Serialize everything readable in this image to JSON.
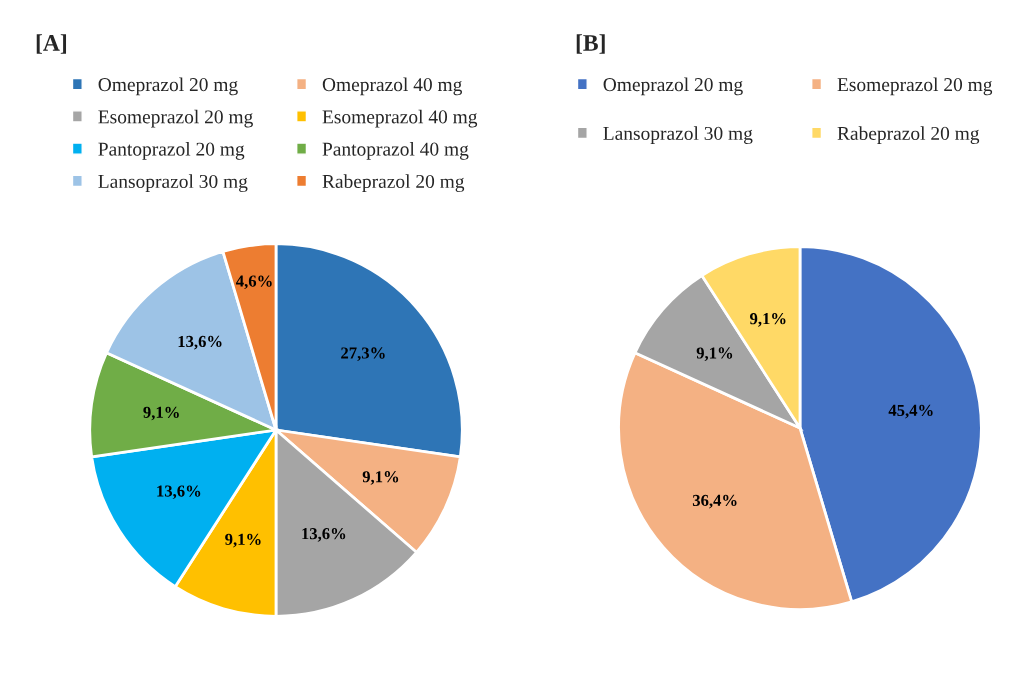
{
  "chart_data": [
    {
      "type": "pie",
      "title": "[A]",
      "legend": "top",
      "categories": [
        "Omeprazol 20 mg",
        "Omeprazol 40 mg",
        "Esomeprazol 20 mg",
        "Esomeprazol 40 mg",
        "Pantoprazol 20 mg",
        "Pantoprazol 40 mg",
        "Lansoprazol 30 mg",
        "Rabeprazol 20 mg"
      ],
      "values": [
        27.3,
        9.1,
        13.6,
        9.1,
        13.6,
        9.1,
        13.6,
        4.6
      ],
      "value_labels": [
        "27,3%",
        "9,1%",
        "13,6%",
        "9,1%",
        "13,6%",
        "9,1%",
        "13,6%",
        "4,6%"
      ],
      "colors": [
        "#2e75b6",
        "#f4b183",
        "#a5a5a5",
        "#ffc000",
        "#00b0f0",
        "#70ad47",
        "#9dc3e6",
        "#ed7d31"
      ]
    },
    {
      "type": "pie",
      "title": "[B]",
      "legend": "top",
      "categories": [
        "Omeprazol 20 mg",
        "Esomeprazol 20 mg",
        "Lansoprazol 30 mg",
        "Rabeprazol 20 mg"
      ],
      "values": [
        45.4,
        36.4,
        9.1,
        9.1
      ],
      "value_labels": [
        "45,4%",
        "36,4%",
        "9,1%",
        "9,1%"
      ],
      "colors": [
        "#4472c4",
        "#f4b183",
        "#a5a5a5",
        "#ffd966"
      ]
    }
  ]
}
